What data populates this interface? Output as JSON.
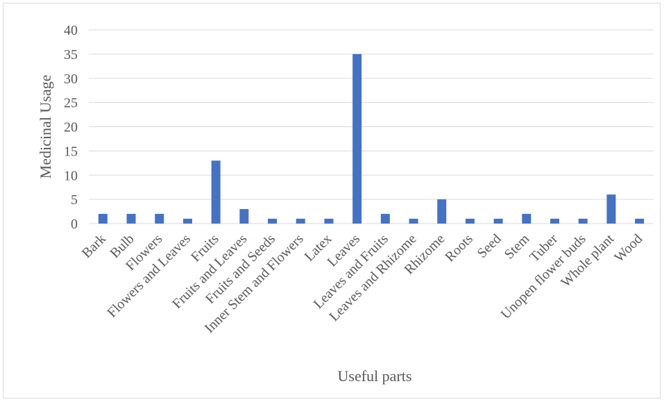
{
  "chart_data": {
    "type": "bar",
    "title": "",
    "xlabel": "Useful parts",
    "ylabel": "Medicinal Usage",
    "ylim": [
      0,
      40
    ],
    "yticks": [
      0,
      5,
      10,
      15,
      20,
      25,
      30,
      35,
      40
    ],
    "grid": true,
    "color": "#4472C4",
    "categories": [
      "Bark",
      "Bulb",
      "Flowers",
      "Flowers and Leaves",
      "Fruits",
      "Fruits and Leaves",
      "Fruits and Seeds",
      "Inner Stem and Flowers",
      "Latex",
      "Leaves",
      "Leaves and Fruits",
      "Leaves and Rhizome",
      "Rhizome",
      "Roots",
      "Seed",
      "Stem",
      "Tuber",
      "Unopen flower buds",
      "Whole plant",
      "Wood"
    ],
    "values": [
      2,
      2,
      2,
      1,
      13,
      3,
      1,
      1,
      1,
      35,
      2,
      1,
      5,
      1,
      1,
      2,
      1,
      1,
      6,
      1
    ]
  }
}
